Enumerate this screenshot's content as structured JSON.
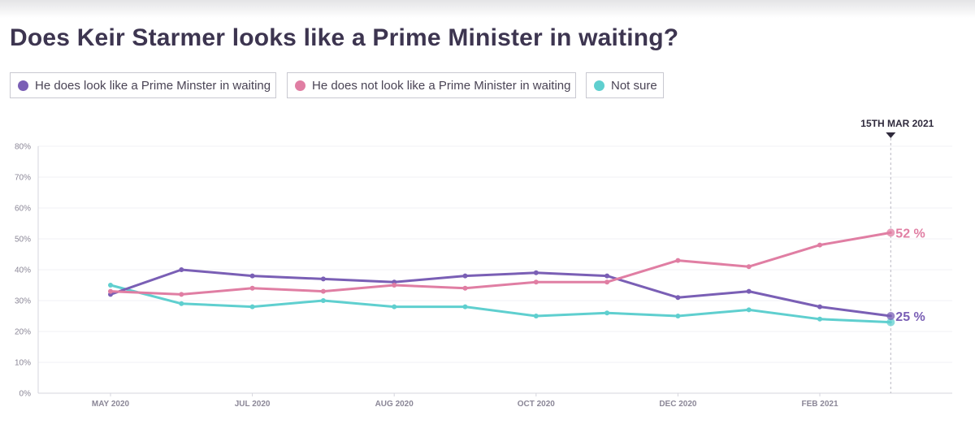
{
  "chart_data": {
    "type": "line",
    "title": "Does Keir Starmer looks like a Prime Minister in waiting?",
    "x": [
      "2020-05",
      "2020-06",
      "2020-07",
      "2020-07b",
      "2020-08",
      "2020-09",
      "2020-10",
      "2020-11",
      "2020-12",
      "2021-01",
      "2021-02",
      "2021-03-15"
    ],
    "x_tick_labels": [
      "MAY 2020",
      "JUL 2020",
      "AUG 2020",
      "OCT 2020",
      "DEC 2020",
      "FEB 2021"
    ],
    "x_tick_positions": [
      0,
      2,
      4,
      6,
      8,
      10
    ],
    "y_ticks": [
      "0%",
      "10%",
      "20%",
      "30%",
      "40%",
      "50%",
      "60%",
      "70%",
      "80%"
    ],
    "ylim": [
      0,
      80
    ],
    "series": [
      {
        "name": "He does look like a Prime Minster in waiting",
        "color": "#7a5fb5",
        "values": [
          32,
          40,
          38,
          37,
          36,
          38,
          39,
          38,
          31,
          33,
          28,
          25
        ],
        "end_label": "25 %"
      },
      {
        "name": "He does not look like a Prime Minister in waiting",
        "color": "#e07ea3",
        "values": [
          33,
          32,
          34,
          33,
          35,
          34,
          36,
          36,
          43,
          41,
          48,
          52
        ],
        "end_label": "52 %"
      },
      {
        "name": "Not sure",
        "color": "#5fcfcf",
        "values": [
          35,
          29,
          28,
          30,
          28,
          28,
          25,
          26,
          25,
          27,
          24,
          23
        ],
        "end_label": ""
      }
    ],
    "marker": {
      "label": "15TH MAR 2021",
      "index": 11
    },
    "grid": true,
    "legend_position": "top-left"
  }
}
